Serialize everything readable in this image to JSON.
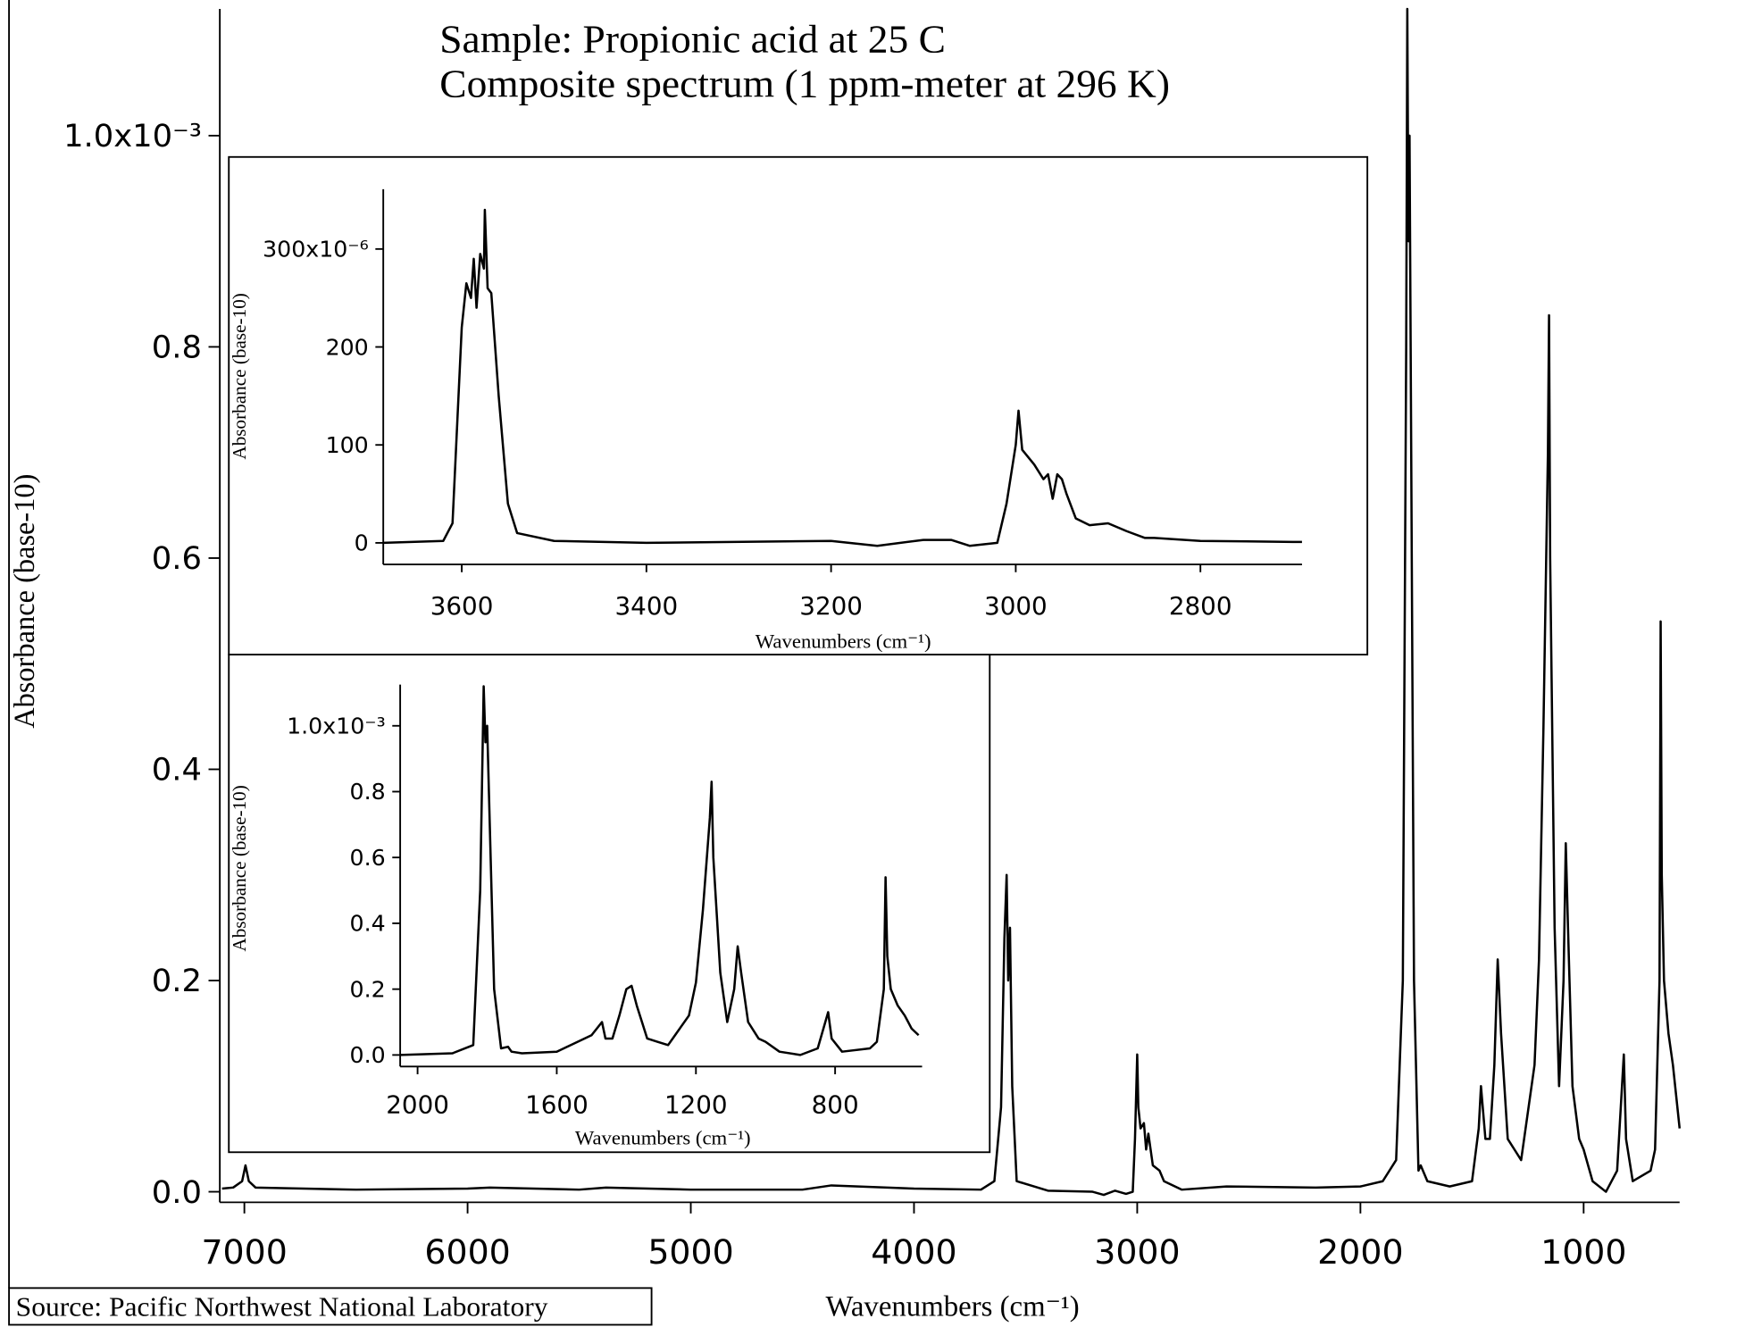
{
  "chart_data": [
    {
      "type": "line",
      "annotations": [
        "Sample: Propionic acid at 25 C",
        "Composite spectrum (1 ppm-meter at 296 K)"
      ],
      "x_label": "Wavenumbers (cm⁻¹)",
      "y_label": "Absorbance (base-10)",
      "xlim": [
        7110,
        570
      ],
      "ylim": [
        -0.01,
        1.12
      ],
      "xticks": [
        7000,
        6000,
        5000,
        4000,
        3000,
        2000,
        1000
      ],
      "yticks": [
        {
          "value": 0,
          "label": "0.0"
        },
        0.2,
        0.4,
        0.6,
        0.8,
        {
          "value": 1.0,
          "label": "1.0x10⁻³"
        }
      ],
      "series": [
        {
          "color": "#000000",
          "x": [
            7100,
            7050,
            7010,
            6995,
            6980,
            6950,
            6500,
            6000,
            5900,
            5500,
            5380,
            5000,
            4500,
            4370,
            4000,
            3700,
            3640,
            3610,
            3595,
            3585,
            3578,
            3570,
            3560,
            3540,
            3400,
            3200,
            3150,
            3100,
            3050,
            3020,
            3010,
            3000,
            2995,
            2985,
            2970,
            2960,
            2950,
            2930,
            2900,
            2880,
            2800,
            2600,
            2200,
            2000,
            1900,
            1840,
            1810,
            1795,
            1790,
            1785,
            1780,
            1775,
            1760,
            1740,
            1730,
            1700,
            1600,
            1500,
            1470,
            1460,
            1440,
            1420,
            1400,
            1385,
            1370,
            1340,
            1310,
            1280,
            1260,
            1240,
            1220,
            1200,
            1180,
            1160,
            1155,
            1150,
            1130,
            1110,
            1090,
            1080,
            1070,
            1050,
            1020,
            1000,
            960,
            900,
            850,
            820,
            810,
            780,
            700,
            680,
            660,
            655,
            650,
            640,
            620,
            600,
            580,
            570
          ],
          "values": [
            0.003,
            0.004,
            0.01,
            0.025,
            0.01,
            0.004,
            0.002,
            0.003,
            0.004,
            0.002,
            0.004,
            0.002,
            0.002,
            0.006,
            0.003,
            0.002,
            0.01,
            0.08,
            0.24,
            0.3,
            0.2,
            0.25,
            0.1,
            0.01,
            0.001,
            0.0,
            -0.003,
            0.001,
            -0.002,
            0.0,
            0.05,
            0.13,
            0.08,
            0.06,
            0.065,
            0.04,
            0.055,
            0.025,
            0.02,
            0.01,
            0.002,
            0.005,
            0.004,
            0.005,
            0.01,
            0.03,
            0.2,
            0.8,
            1.12,
            0.9,
            1.0,
            0.8,
            0.2,
            0.02,
            0.025,
            0.01,
            0.005,
            0.01,
            0.06,
            0.1,
            0.05,
            0.05,
            0.12,
            0.22,
            0.15,
            0.05,
            0.04,
            0.03,
            0.06,
            0.09,
            0.12,
            0.22,
            0.44,
            0.7,
            0.83,
            0.6,
            0.25,
            0.1,
            0.2,
            0.33,
            0.25,
            0.1,
            0.05,
            0.04,
            0.01,
            0.0,
            0.02,
            0.13,
            0.05,
            0.01,
            0.02,
            0.04,
            0.2,
            0.54,
            0.3,
            0.2,
            0.15,
            0.12,
            0.08,
            0.06
          ]
        }
      ]
    },
    {
      "type": "line",
      "x_label": "Wavenumbers (cm⁻¹)",
      "y_label": "Absorbance (base-10)",
      "xlim": [
        3685,
        2690
      ],
      "ylim": [
        -22,
        361
      ],
      "xticks": [
        3600,
        3400,
        3200,
        3000,
        2800
      ],
      "yticks": [
        0,
        100,
        200,
        {
          "value": 300,
          "label": "300x10⁻⁶"
        }
      ],
      "series": [
        {
          "color": "#000000",
          "x": [
            3685,
            3620,
            3610,
            3600,
            3595,
            3590,
            3587,
            3584,
            3580,
            3576,
            3575,
            3572,
            3568,
            3560,
            3550,
            3540,
            3500,
            3400,
            3200,
            3150,
            3100,
            3070,
            3050,
            3020,
            3010,
            3000,
            2997,
            2993,
            2980,
            2970,
            2965,
            2960,
            2955,
            2950,
            2945,
            2935,
            2920,
            2900,
            2880,
            2860,
            2850,
            2800,
            2700,
            2690
          ],
          "values": [
            0,
            2,
            20,
            220,
            265,
            250,
            290,
            240,
            295,
            280,
            340,
            260,
            255,
            150,
            40,
            10,
            2,
            0,
            2,
            -3,
            3,
            3,
            -3,
            0,
            40,
            100,
            135,
            95,
            80,
            65,
            70,
            45,
            70,
            65,
            50,
            25,
            18,
            20,
            12,
            5,
            5,
            2,
            1,
            1
          ]
        }
      ]
    },
    {
      "type": "line",
      "x_label": "Wavenumbers (cm⁻¹)",
      "y_label": "Absorbance (base-10)",
      "xlim": [
        2050,
        550
      ],
      "ylim": [
        -0.035,
        1.125
      ],
      "xticks": [
        2000,
        1600,
        1200,
        800
      ],
      "yticks": [
        {
          "value": 0,
          "label": "0.0"
        },
        0.2,
        0.4,
        0.6,
        0.8,
        {
          "value": 1.0,
          "label": "1.0x10⁻³"
        }
      ],
      "series": [
        {
          "color": "#000000",
          "x": [
            2050,
            1900,
            1840,
            1820,
            1810,
            1805,
            1800,
            1795,
            1780,
            1760,
            1740,
            1730,
            1700,
            1600,
            1500,
            1470,
            1460,
            1440,
            1420,
            1400,
            1385,
            1370,
            1340,
            1310,
            1280,
            1260,
            1240,
            1220,
            1200,
            1180,
            1160,
            1155,
            1150,
            1130,
            1110,
            1090,
            1080,
            1070,
            1050,
            1020,
            1000,
            960,
            900,
            850,
            820,
            810,
            780,
            700,
            680,
            660,
            655,
            650,
            640,
            620,
            600,
            580,
            560
          ],
          "values": [
            0.0,
            0.005,
            0.03,
            0.5,
            1.12,
            0.95,
            1.0,
            0.8,
            0.2,
            0.02,
            0.025,
            0.01,
            0.005,
            0.01,
            0.06,
            0.1,
            0.05,
            0.05,
            0.12,
            0.2,
            0.21,
            0.15,
            0.05,
            0.04,
            0.03,
            0.06,
            0.09,
            0.12,
            0.22,
            0.44,
            0.72,
            0.83,
            0.6,
            0.25,
            0.1,
            0.2,
            0.33,
            0.25,
            0.1,
            0.05,
            0.04,
            0.01,
            0.0,
            0.02,
            0.13,
            0.05,
            0.01,
            0.02,
            0.04,
            0.2,
            0.54,
            0.3,
            0.2,
            0.15,
            0.12,
            0.08,
            0.06
          ]
        }
      ]
    }
  ],
  "source": "Source: Pacific Northwest National Laboratory"
}
